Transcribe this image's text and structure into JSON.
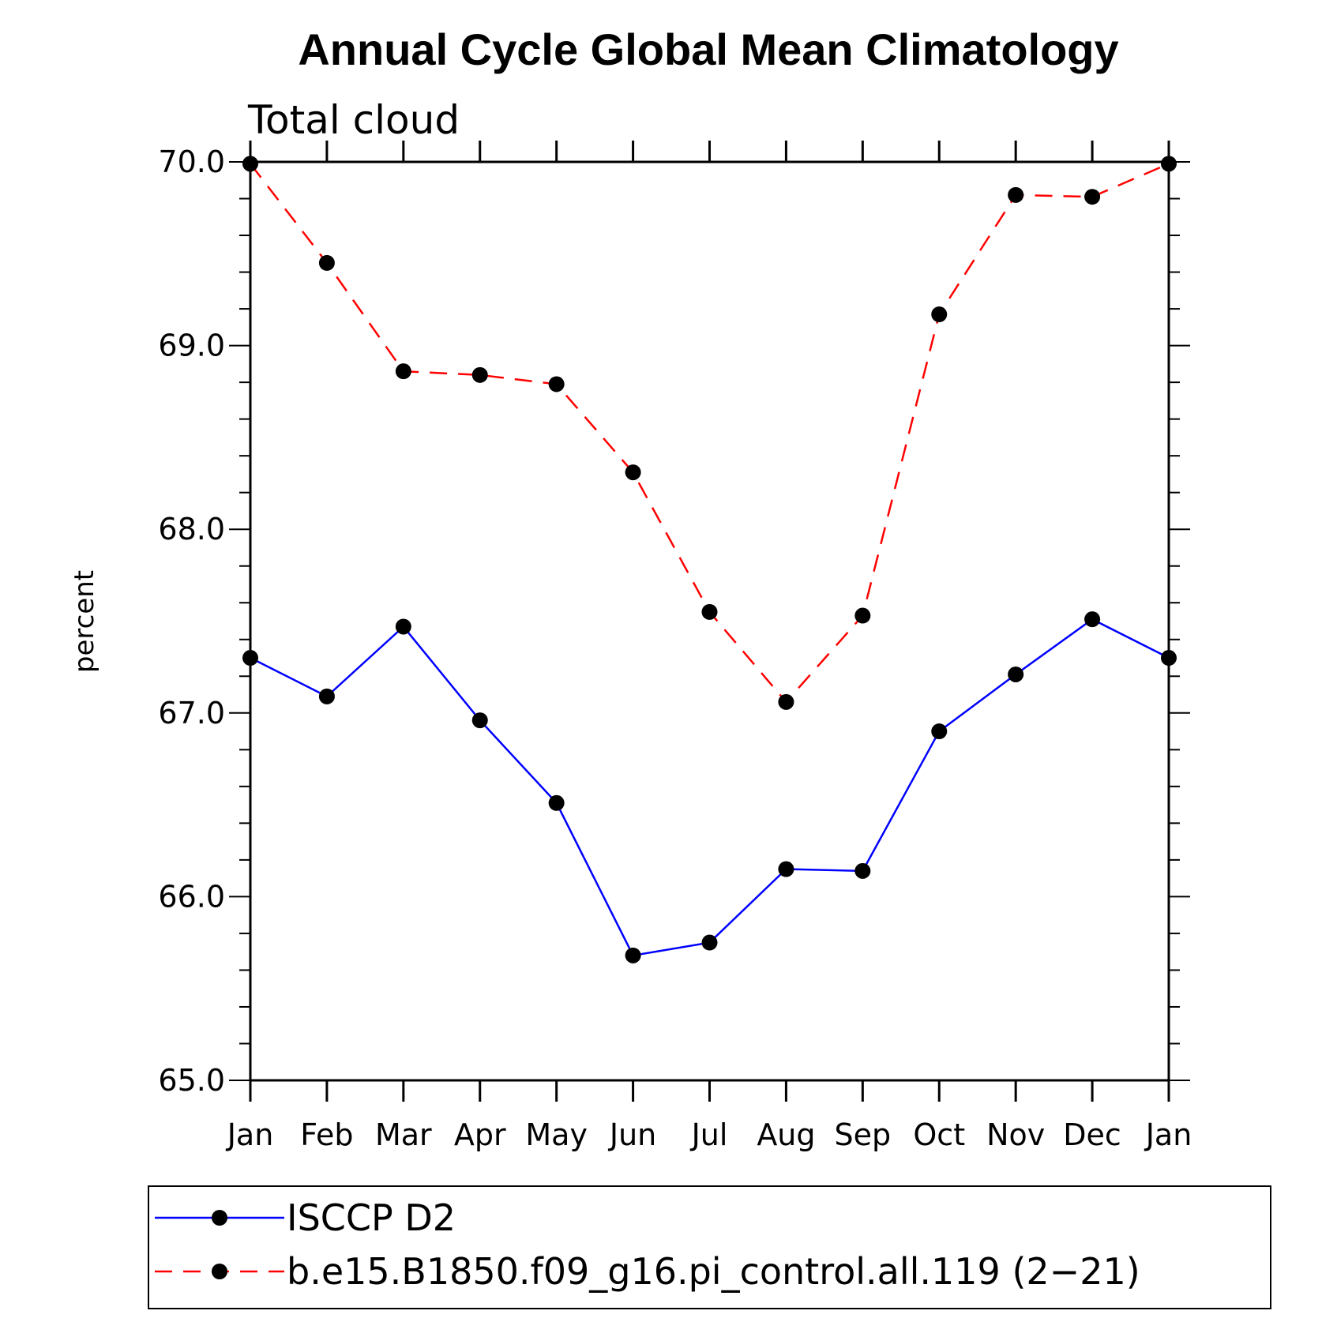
{
  "chart_data": {
    "type": "line",
    "title": "Annual Cycle Global Mean Climatology",
    "subtitle": "Total cloud",
    "xlabel": "",
    "ylabel": "percent",
    "categories": [
      "Jan",
      "Feb",
      "Mar",
      "Apr",
      "May",
      "Jun",
      "Jul",
      "Aug",
      "Sep",
      "Oct",
      "Nov",
      "Dec",
      "Jan"
    ],
    "ylim": [
      65.0,
      70.0
    ],
    "yticks": [
      "65.0",
      "66.0",
      "67.0",
      "68.0",
      "69.0",
      "70.0"
    ],
    "grid": false,
    "legend_position": "bottom",
    "series": [
      {
        "name": "ISCCP D2",
        "color": "#0000ff",
        "dash": "solid",
        "values": [
          67.3,
          67.09,
          67.47,
          66.96,
          66.51,
          65.68,
          65.75,
          66.15,
          66.14,
          66.9,
          67.21,
          67.51,
          67.3
        ]
      },
      {
        "name": "b.e15.B1850.f09_g16.pi_control.all.119 (2−21)",
        "color": "#ff0000",
        "dash": "dashed",
        "values": [
          69.99,
          69.45,
          68.86,
          68.84,
          68.79,
          68.31,
          67.55,
          67.06,
          67.53,
          69.17,
          69.82,
          69.81,
          69.99
        ]
      }
    ]
  }
}
